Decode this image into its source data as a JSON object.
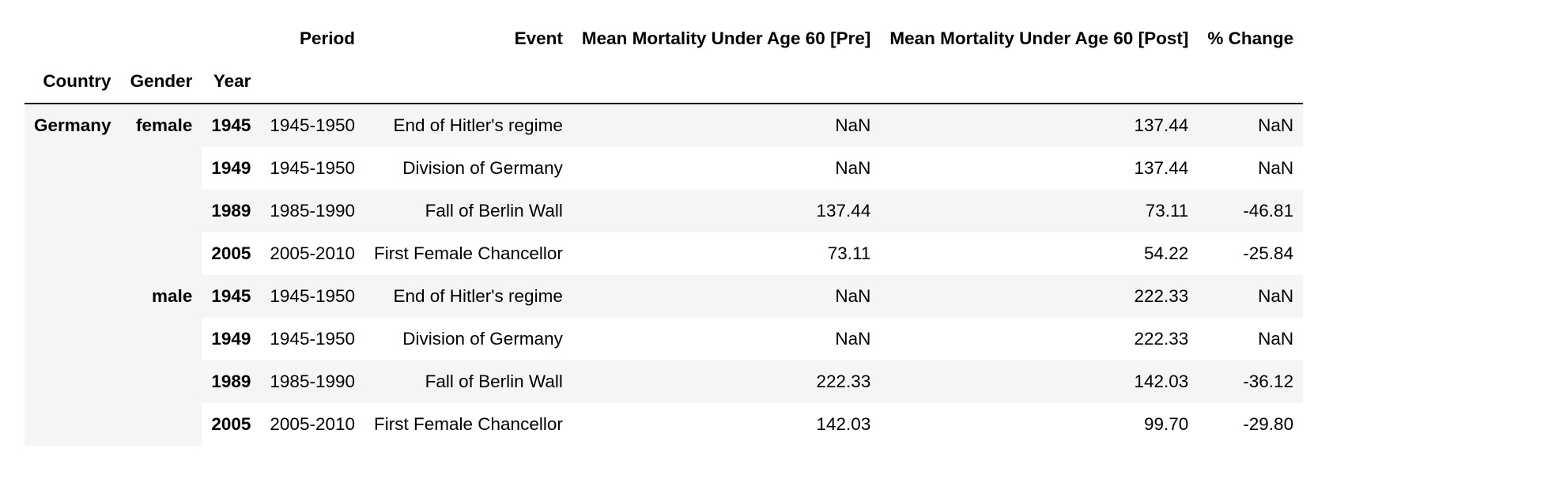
{
  "table": {
    "columns": [
      "Period",
      "Event",
      "Mean Mortality Under Age 60 [Pre]",
      "Mean Mortality Under Age 60 [Post]",
      "% Change"
    ],
    "index_names": [
      "Country",
      "Gender",
      "Year"
    ],
    "country": "Germany",
    "groups": [
      {
        "gender": "female",
        "rows": [
          {
            "year": "1945",
            "period": "1945-1950",
            "event": "End of Hitler's regime",
            "pre": "NaN",
            "post": "137.44",
            "change": "NaN"
          },
          {
            "year": "1949",
            "period": "1945-1950",
            "event": "Division of Germany",
            "pre": "NaN",
            "post": "137.44",
            "change": "NaN"
          },
          {
            "year": "1989",
            "period": "1985-1990",
            "event": "Fall of Berlin Wall",
            "pre": "137.44",
            "post": "73.11",
            "change": "-46.81"
          },
          {
            "year": "2005",
            "period": "2005-2010",
            "event": "First Female Chancellor",
            "pre": "73.11",
            "post": "54.22",
            "change": "-25.84"
          }
        ]
      },
      {
        "gender": "male",
        "rows": [
          {
            "year": "1945",
            "period": "1945-1950",
            "event": "End of Hitler's regime",
            "pre": "NaN",
            "post": "222.33",
            "change": "NaN"
          },
          {
            "year": "1949",
            "period": "1945-1950",
            "event": "Division of Germany",
            "pre": "NaN",
            "post": "222.33",
            "change": "NaN"
          },
          {
            "year": "1989",
            "period": "1985-1990",
            "event": "Fall of Berlin Wall",
            "pre": "222.33",
            "post": "142.03",
            "change": "-36.12"
          },
          {
            "year": "2005",
            "period": "2005-2010",
            "event": "First Female Chancellor",
            "pre": "142.03",
            "post": "99.70",
            "change": "-29.80"
          }
        ]
      }
    ]
  }
}
